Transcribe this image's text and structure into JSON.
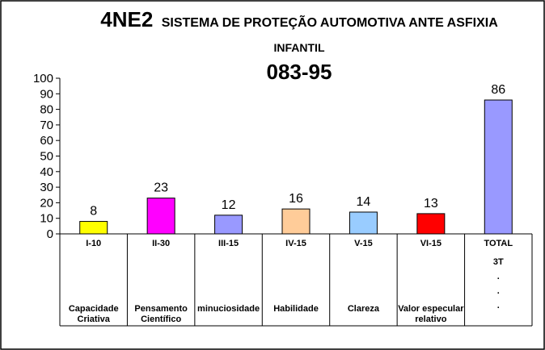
{
  "title_code": "4NE2",
  "title_text": "SISTEMA DE PROTEÇÃO AUTOMOTIVA ANTE ASFIXIA",
  "title_line2": "INFANTIL",
  "title_number": "083-95",
  "chart_data": {
    "type": "bar",
    "categories": [
      "I-10",
      "II-30",
      "III-15",
      "IV-15",
      "V-15",
      "VI-15",
      "TOTAL"
    ],
    "category_sublabels": [
      [
        "Capacidade",
        "Criativa"
      ],
      [
        "Pensamento",
        "Científico"
      ],
      [
        "minuciosidade"
      ],
      [
        "Habilidade"
      ],
      [
        "Clareza"
      ],
      [
        "Valor especular",
        "relativo"
      ],
      [
        "3T",
        ".",
        ".",
        "."
      ]
    ],
    "values": [
      8,
      23,
      12,
      16,
      14,
      13,
      86
    ],
    "colors": [
      "#ffff00",
      "#ff00ff",
      "#9999ff",
      "#ffcc99",
      "#99ccff",
      "#ff0000",
      "#9999ff"
    ],
    "ylim": [
      0,
      100
    ],
    "yticks": [
      "0",
      "10",
      "20",
      "30",
      "40",
      "50",
      "60",
      "70",
      "80",
      "90",
      "100"
    ],
    "grid": false,
    "legend": "none"
  }
}
